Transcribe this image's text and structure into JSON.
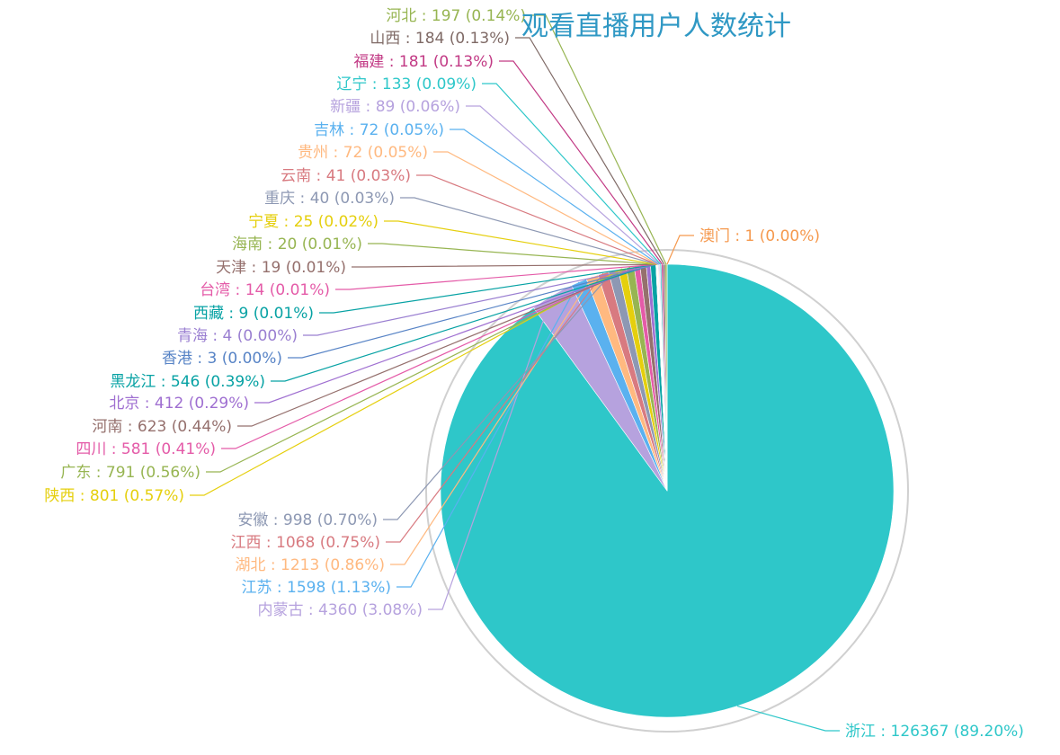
{
  "title": "观看直播用户人数统计",
  "chart_data": {
    "type": "pie",
    "title": "观看直播用户人数统计",
    "separator": " : ",
    "slices": [
      {
        "name": "浙江",
        "value": 126367,
        "percent": "89.20%",
        "color": "#2ec7c9"
      },
      {
        "name": "内蒙古",
        "value": 4360,
        "percent": "3.08%",
        "color": "#b6a2de"
      },
      {
        "name": "江苏",
        "value": 1598,
        "percent": "1.13%",
        "color": "#5ab1ef"
      },
      {
        "name": "湖北",
        "value": 1213,
        "percent": "0.86%",
        "color": "#ffb980"
      },
      {
        "name": "江西",
        "value": 1068,
        "percent": "0.75%",
        "color": "#d87a80"
      },
      {
        "name": "安徽",
        "value": 998,
        "percent": "0.70%",
        "color": "#8d98b3"
      },
      {
        "name": "陕西",
        "value": 801,
        "percent": "0.57%",
        "color": "#e5cf0d"
      },
      {
        "name": "广东",
        "value": 791,
        "percent": "0.56%",
        "color": "#97b552"
      },
      {
        "name": "四川",
        "value": 581,
        "percent": "0.41%",
        "color": "#e45ba8"
      },
      {
        "name": "河南",
        "value": 623,
        "percent": "0.44%",
        "color": "#95706d"
      },
      {
        "name": "北京",
        "value": 412,
        "percent": "0.29%",
        "color": "#9f6fd1"
      },
      {
        "name": "黑龙江",
        "value": 546,
        "percent": "0.39%",
        "color": "#07a2a4"
      },
      {
        "name": "香港",
        "value": 3,
        "percent": "0.00%",
        "color": "#5884c6"
      },
      {
        "name": "青海",
        "value": 4,
        "percent": "0.00%",
        "color": "#9a7fd1"
      },
      {
        "name": "西藏",
        "value": 9,
        "percent": "0.01%",
        "color": "#07a2a4"
      },
      {
        "name": "台湾",
        "value": 14,
        "percent": "0.01%",
        "color": "#e45ba8"
      },
      {
        "name": "天津",
        "value": 19,
        "percent": "0.01%",
        "color": "#95706d"
      },
      {
        "name": "海南",
        "value": 20,
        "percent": "0.01%",
        "color": "#97b552"
      },
      {
        "name": "宁夏",
        "value": 25,
        "percent": "0.02%",
        "color": "#e5cf0d"
      },
      {
        "name": "重庆",
        "value": 40,
        "percent": "0.03%",
        "color": "#8d98b3"
      },
      {
        "name": "云南",
        "value": 41,
        "percent": "0.03%",
        "color": "#d87a80"
      },
      {
        "name": "贵州",
        "value": 72,
        "percent": "0.05%",
        "color": "#ffb980"
      },
      {
        "name": "吉林",
        "value": 72,
        "percent": "0.05%",
        "color": "#5ab1ef"
      },
      {
        "name": "新疆",
        "value": 89,
        "percent": "0.06%",
        "color": "#b6a2de"
      },
      {
        "name": "辽宁",
        "value": 133,
        "percent": "0.09%",
        "color": "#2ec7c9"
      },
      {
        "name": "福建",
        "value": 181,
        "percent": "0.13%",
        "color": "#c23a85"
      },
      {
        "name": "山西",
        "value": 184,
        "percent": "0.13%",
        "color": "#7f6a66"
      },
      {
        "name": "河北",
        "value": 197,
        "percent": "0.14%",
        "color": "#97b552"
      },
      {
        "name": "澳门",
        "value": 1,
        "percent": "0.00%",
        "color": "#f5994e"
      }
    ],
    "outer_ring_color": "#d0d0d0"
  }
}
